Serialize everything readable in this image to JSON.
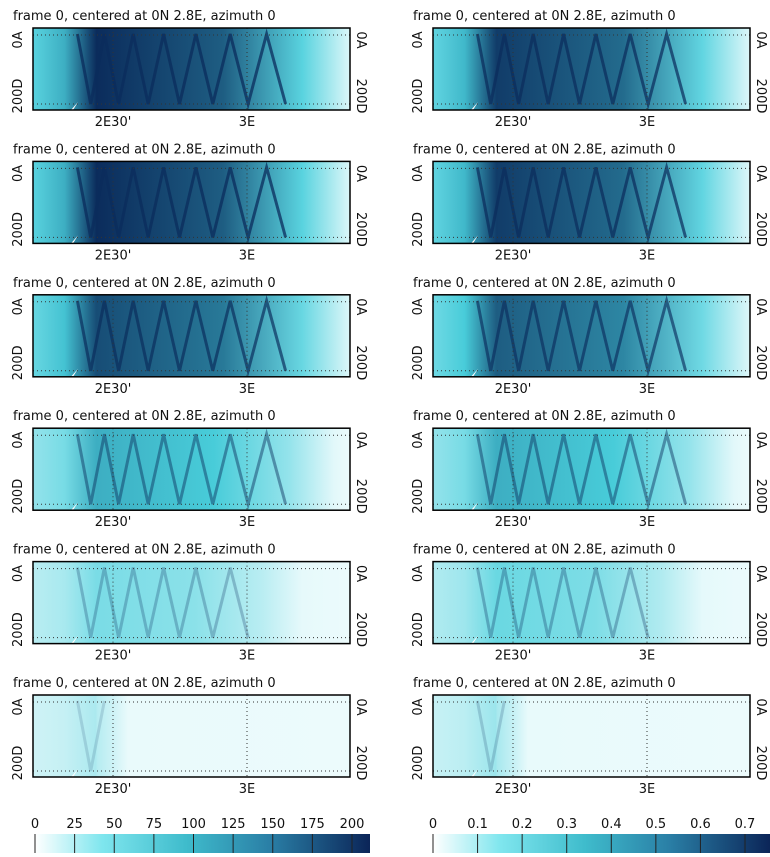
{
  "panels": [
    {
      "title": "frame 0, centered at 0N 2.8E, azimuth 0",
      "y_top": "0A",
      "y_bottom": "200D",
      "x_labels": [
        "2E30'",
        "3E"
      ]
    },
    {
      "title": "frame 0, centered at 0N 2.8E, azimuth 0",
      "y_top": "0A",
      "y_bottom": "200D",
      "x_labels": [
        "2E30'",
        "3E"
      ]
    },
    {
      "title": "frame 0, centered at 0N 2.8E, azimuth 0",
      "y_top": "0A",
      "y_bottom": "200D",
      "x_labels": [
        "2E30'",
        "3E"
      ]
    },
    {
      "title": "frame 0, centered at 0N 2.8E, azimuth 0",
      "y_top": "0A",
      "y_bottom": "200D",
      "x_labels": [
        "2E30'",
        "3E"
      ]
    },
    {
      "title": "frame 0, centered at 0N 2.8E, azimuth 0",
      "y_top": "0A",
      "y_bottom": "200D",
      "x_labels": [
        "2E30'",
        "3E"
      ]
    },
    {
      "title": "frame 0, centered at 0N 2.8E, azimuth 0",
      "y_top": "0A",
      "y_bottom": "200D",
      "x_labels": [
        "2E30'",
        "3E"
      ]
    },
    {
      "title": "frame 0, centered at 0N 2.8E, azimuth 0",
      "y_top": "0A",
      "y_bottom": "200D",
      "x_labels": [
        "2E30'",
        "3E"
      ]
    },
    {
      "title": "frame 0, centered at 0N 2.8E, azimuth 0",
      "y_top": "0A",
      "y_bottom": "200D",
      "x_labels": [
        "2E30'",
        "3E"
      ]
    },
    {
      "title": "frame 0, centered at 0N 2.8E, azimuth 0",
      "y_top": "0A",
      "y_bottom": "200D",
      "x_labels": [
        "2E30'",
        "3E"
      ]
    },
    {
      "title": "frame 0, centered at 0N 2.8E, azimuth 0",
      "y_top": "0A",
      "y_bottom": "200D",
      "x_labels": [
        "2E30'",
        "3E"
      ]
    },
    {
      "title": "frame 0, centered at 0N 2.8E, azimuth 0",
      "y_top": "0A",
      "y_bottom": "200D",
      "x_labels": [
        "2E30'",
        "3E"
      ]
    },
    {
      "title": "frame 0, centered at 0N 2.8E, azimuth 0",
      "y_top": "0A",
      "y_bottom": "200D",
      "x_labels": [
        "2E30'",
        "3E"
      ]
    }
  ],
  "colorbars": [
    {
      "ticks": [
        0,
        25,
        50,
        75,
        100,
        125,
        150,
        175,
        200
      ]
    },
    {
      "ticks": [
        0,
        0.1,
        0.2,
        0.3,
        0.4,
        0.5,
        0.6,
        0.7
      ]
    }
  ]
}
